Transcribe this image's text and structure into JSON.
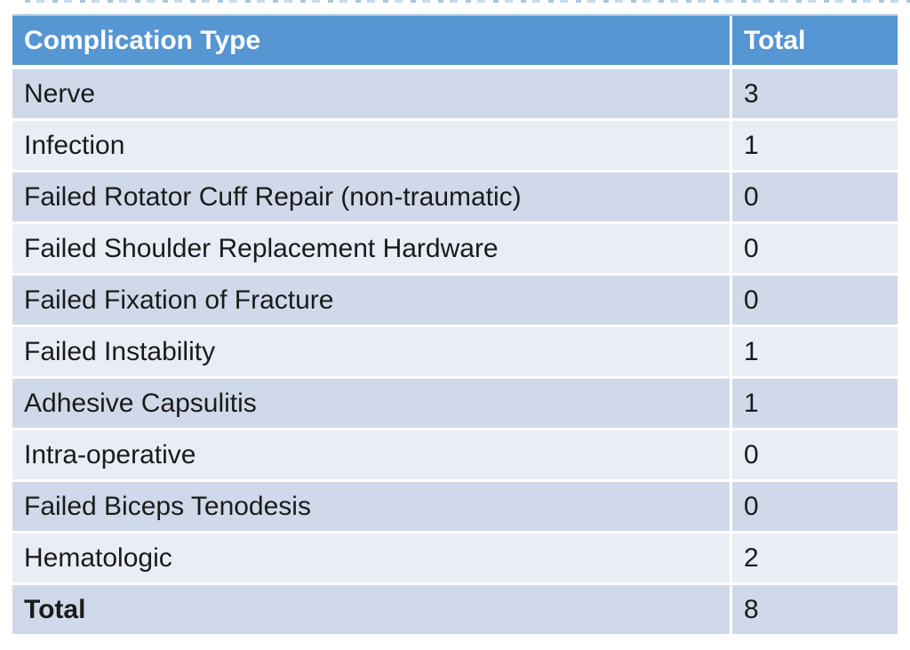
{
  "table": {
    "header": {
      "type_label": "Complication Type",
      "total_label": "Total"
    },
    "rows": [
      {
        "type": "Nerve",
        "total": "3"
      },
      {
        "type": "Infection",
        "total": "1"
      },
      {
        "type": "Failed Rotator Cuff Repair (non-traumatic)",
        "total": "0"
      },
      {
        "type": "Failed Shoulder Replacement Hardware",
        "total": "0"
      },
      {
        "type": "Failed Fixation of Fracture",
        "total": "0"
      },
      {
        "type": "Failed Instability",
        "total": "1"
      },
      {
        "type": "Adhesive Capsulitis",
        "total": "1"
      },
      {
        "type": "Intra-operative",
        "total": "0"
      },
      {
        "type": "Failed Biceps Tenodesis",
        "total": "0"
      },
      {
        "type": "Hematologic",
        "total": "2"
      }
    ],
    "footer": {
      "label": "Total",
      "value": "8"
    }
  },
  "colors": {
    "header_background": "#5596d3",
    "header_text": "#ffffff",
    "band_dark": "#cfd9ea",
    "band_light": "#e9edf6",
    "row_text": "#1b1b1b",
    "divider": "#ffffff"
  },
  "chart_data": {
    "type": "table",
    "title": "",
    "columns": [
      "Complication Type",
      "Total"
    ],
    "rows": [
      [
        "Nerve",
        3
      ],
      [
        "Infection",
        1
      ],
      [
        "Failed Rotator Cuff Repair (non-traumatic)",
        0
      ],
      [
        "Failed Shoulder Replacement Hardware",
        0
      ],
      [
        "Failed Fixation of Fracture",
        0
      ],
      [
        "Failed Instability",
        1
      ],
      [
        "Adhesive Capsulitis",
        1
      ],
      [
        "Intra-operative",
        0
      ],
      [
        "Failed Biceps Tenodesis",
        0
      ],
      [
        "Hematologic",
        2
      ]
    ],
    "footer": [
      "Total",
      8
    ],
    "layout_hints": {
      "banded_rows": true,
      "header_fill": "#5596d3",
      "band_colors": [
        "#cfd9ea",
        "#e9edf6"
      ]
    }
  }
}
